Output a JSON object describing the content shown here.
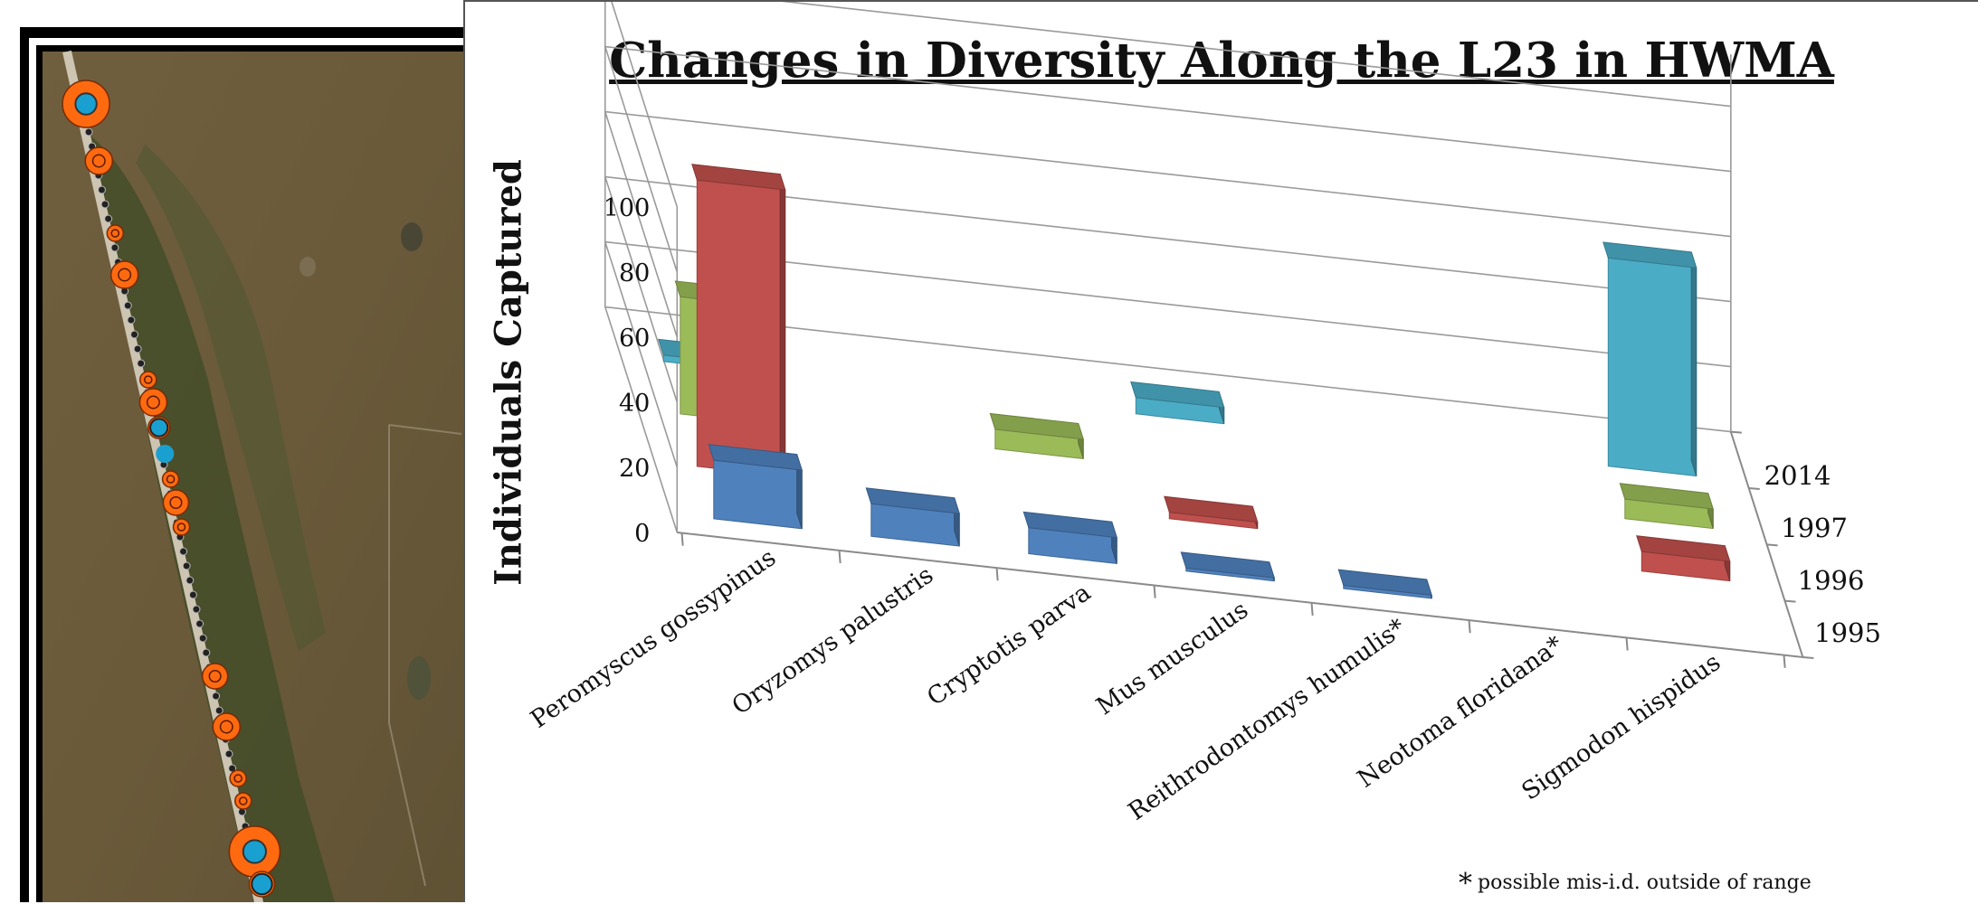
{
  "chart_data": {
    "type": "bar",
    "title": "Changes in Diversity Along the L23 in HWMA",
    "ylabel": "Individuals Captured",
    "xlabel": "",
    "categories": [
      "Peromyscus gossypinus",
      "Oryzomys palustris",
      "Cryptotis parva",
      "Mus musculus",
      "Reithrodontomys humulis*",
      "Neotoma floridana*",
      "Sigmodon hispidus"
    ],
    "series": [
      {
        "name": "1995",
        "color": "#4f81bd",
        "values": [
          18,
          10,
          8,
          1,
          1,
          0,
          0
        ]
      },
      {
        "name": "1996",
        "color": "#c0504d",
        "values": [
          88,
          0,
          0,
          2,
          0,
          0,
          6
        ]
      },
      {
        "name": "1997",
        "color": "#9bbb59",
        "values": [
          36,
          0,
          6,
          0,
          0,
          0,
          6
        ]
      },
      {
        "name": "2014",
        "color": "#4bacc6",
        "values": [
          2,
          0,
          0,
          5,
          0,
          0,
          64
        ]
      }
    ],
    "yticks": [
      "0",
      "20",
      "40",
      "60",
      "80",
      "100"
    ],
    "ylim": [
      0,
      100
    ],
    "grid": true,
    "legend": "depth-axis labels on the right"
  },
  "footnote": {
    "marker": "*",
    "text": "possible mis-i.d. outside of range"
  },
  "map": {
    "colors": {
      "terrain": "#6b5a3a",
      "vegetation": "#3e4a26",
      "road": "#cfc6b5",
      "trap_orange": "#ff6a10",
      "trap_blue": "#1aa0d0"
    }
  }
}
